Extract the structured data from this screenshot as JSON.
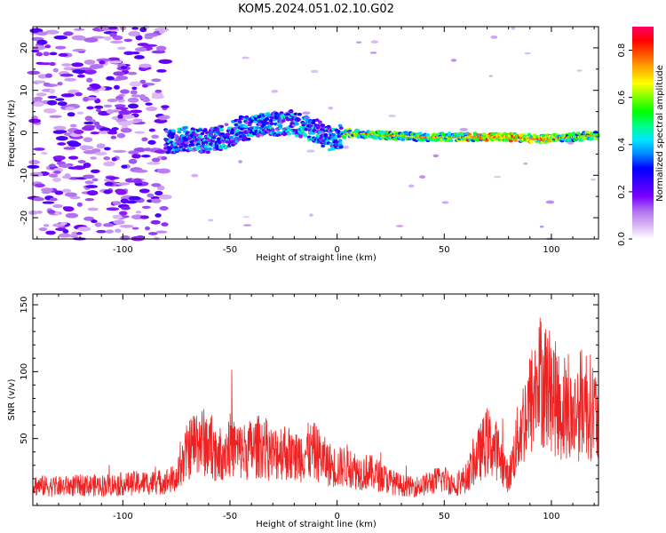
{
  "title": "KOM5.2024.051.02.10.G02",
  "chart_data": [
    {
      "type": "heatmap",
      "title": "KOM5.2024.051.02.10.G02",
      "xlabel": "Height of straight line (km)",
      "ylabel": "Frequency (Hz)",
      "xlim": [
        -142,
        122
      ],
      "ylim": [
        -25,
        25
      ],
      "xticks": [
        -100,
        -50,
        0,
        50,
        100
      ],
      "yticks": [
        -20,
        -10,
        0,
        10,
        20
      ],
      "colorbar": {
        "label": "Normalized spectral amplitude",
        "range": [
          0.0,
          0.9
        ],
        "ticks": [
          0.0,
          0.2,
          0.4,
          0.6,
          0.8
        ],
        "colormap": [
          "#ffffff",
          "#d9b3f5",
          "#b070f0",
          "#7a00ff",
          "#3a00ff",
          "#0000ff",
          "#0088ff",
          "#00e5ff",
          "#00ff88",
          "#00ff00",
          "#7dff00",
          "#ffff00",
          "#ffb000",
          "#ff5a00",
          "#ff0000",
          "#ff0066"
        ]
      },
      "trace": {
        "x": [
          -78,
          -70,
          -60,
          -50,
          -45,
          -38,
          -30,
          -22,
          -15,
          -8,
          -3,
          0,
          5,
          20,
          40,
          60,
          80,
          95,
          110,
          122
        ],
        "y": [
          -2,
          -1.5,
          -2,
          -0.5,
          1,
          1.5,
          2,
          2.5,
          1.5,
          0,
          -1.5,
          -1.5,
          0,
          -0.5,
          -1,
          -1,
          -1,
          -1.5,
          -1,
          -0.5
        ]
      }
    },
    {
      "type": "line",
      "xlabel": "Height of straight line (km)",
      "ylabel": "SNR (v/v)",
      "xlim": [
        -142,
        122
      ],
      "ylim": [
        0,
        158
      ],
      "xticks": [
        -100,
        -50,
        0,
        50,
        100
      ],
      "yticks": [
        50,
        100,
        150
      ],
      "color": "#ee2222",
      "series": [
        {
          "x": [
            -142,
            -130,
            -120,
            -110,
            -100,
            -90,
            -85,
            -80,
            -75,
            -70,
            -65,
            -60,
            -55,
            -50,
            -45,
            -40,
            -35,
            -30,
            -25,
            -20,
            -15,
            -10,
            -5,
            0,
            5,
            10,
            15,
            20,
            25,
            30,
            35,
            40,
            45,
            50,
            55,
            60,
            65,
            70,
            75,
            80,
            85,
            90,
            95,
            100,
            105,
            110,
            115,
            120,
            122
          ],
          "values": [
            15,
            14,
            15,
            15,
            16,
            17,
            17,
            18,
            20,
            40,
            50,
            45,
            38,
            45,
            40,
            42,
            45,
            38,
            42,
            35,
            40,
            40,
            32,
            28,
            30,
            25,
            25,
            22,
            18,
            15,
            14,
            15,
            18,
            20,
            15,
            20,
            35,
            48,
            40,
            20,
            55,
            75,
            95,
            85,
            70,
            65,
            80,
            70,
            60
          ]
        }
      ]
    }
  ]
}
